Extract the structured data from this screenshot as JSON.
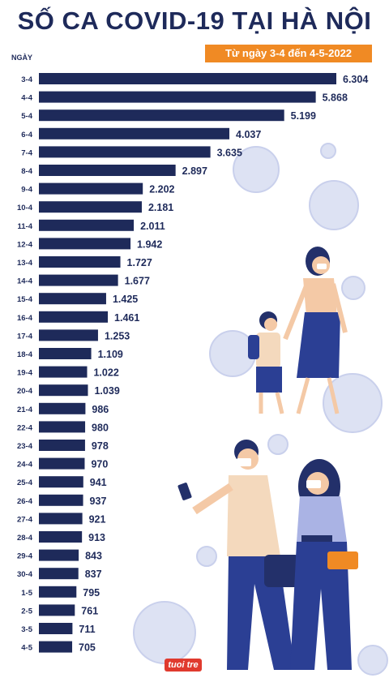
{
  "title": "SỐ CA COVID-19 TẠI HÀ NỘI",
  "subtitle": "Từ ngày 3-4 đến 4-5-2022",
  "logo": "tuoi tre",
  "colors": {
    "bar": "#1e2a5a",
    "accent": "#f08a24",
    "decor": "#c9d0ec"
  },
  "chart_data": {
    "type": "bar",
    "orientation": "horizontal",
    "ylabel": "NGÀY",
    "categories": [
      "3-4",
      "4-4",
      "5-4",
      "6-4",
      "7-4",
      "8-4",
      "9-4",
      "10-4",
      "11-4",
      "12-4",
      "13-4",
      "14-4",
      "15-4",
      "16-4",
      "17-4",
      "18-4",
      "19-4",
      "20-4",
      "21-4",
      "22-4",
      "23-4",
      "24-4",
      "25-4",
      "26-4",
      "27-4",
      "28-4",
      "29-4",
      "30-4",
      "1-5",
      "2-5",
      "3-5",
      "4-5"
    ],
    "values": [
      6304,
      5868,
      5199,
      4037,
      3635,
      2897,
      2202,
      2181,
      2011,
      1942,
      1727,
      1677,
      1425,
      1461,
      1253,
      1109,
      1022,
      1039,
      986,
      980,
      978,
      970,
      941,
      937,
      921,
      913,
      843,
      837,
      795,
      761,
      711,
      705
    ],
    "value_labels": [
      "6.304",
      "5.868",
      "5.199",
      "4.037",
      "3.635",
      "2.897",
      "2.202",
      "2.181",
      "2.011",
      "1.942",
      "1.727",
      "1.677",
      "1.425",
      "1.461",
      "1.253",
      "1.109",
      "1.022",
      "1.039",
      "986",
      "980",
      "978",
      "970",
      "941",
      "937",
      "921",
      "913",
      "843",
      "837",
      "795",
      "761",
      "711",
      "705"
    ],
    "xlim": [
      0,
      6304
    ],
    "grid": false,
    "legend": "none"
  }
}
